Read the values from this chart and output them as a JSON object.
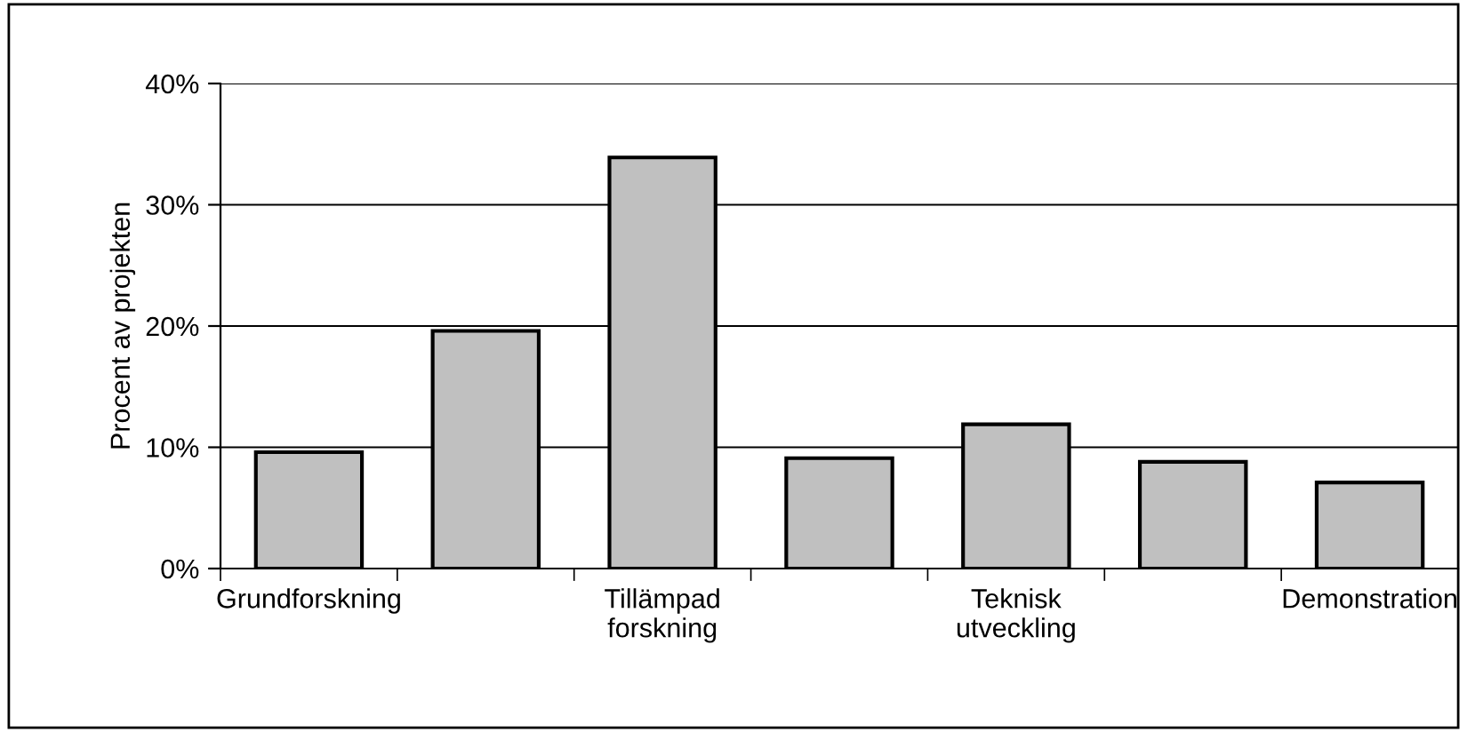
{
  "chart_data": {
    "type": "bar",
    "ylabel": "Procent av projekten",
    "categories": [
      "Grundforskning",
      null,
      "Tillämpad\nforskning",
      null,
      "Teknisk\nutveckling",
      null,
      "Demonstration"
    ],
    "values": [
      9.6,
      19.6,
      33.9,
      9.1,
      11.9,
      8.8,
      7.1
    ],
    "color": "#c0c0c0",
    "ylim": [
      0,
      40
    ],
    "yticks": [
      {
        "value": 0,
        "label": "0%"
      },
      {
        "value": 10,
        "label": "10%"
      },
      {
        "value": 20,
        "label": "20%"
      },
      {
        "value": 30,
        "label": "30%"
      },
      {
        "value": 40,
        "label": "40%"
      }
    ],
    "grid": "y",
    "legend": false
  }
}
